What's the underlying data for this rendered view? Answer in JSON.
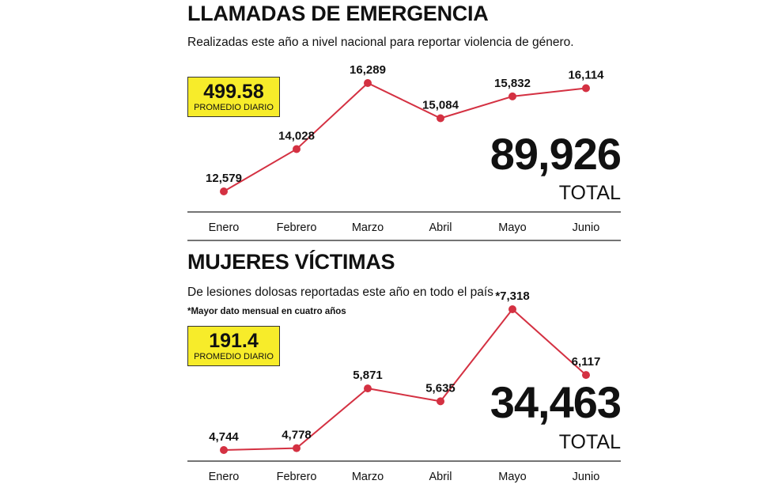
{
  "chart_data": [
    {
      "type": "line",
      "title": "LLAMADAS DE EMERGENCIA",
      "subtitle": "Realizadas este año a nivel nacional para reportar violencia de género.",
      "categories": [
        "Enero",
        "Febrero",
        "Marzo",
        "Abril",
        "Mayo",
        "Junio"
      ],
      "values": [
        12579,
        14028,
        16289,
        15084,
        15832,
        16114
      ],
      "value_labels": [
        "12,579",
        "14,028",
        "16,289",
        "15,084",
        "15,832",
        "16,114"
      ],
      "average_value": "499.58",
      "average_label": "PROMEDIO DIARIO",
      "total_value": "89,926",
      "total_label": "TOTAL",
      "line_color": "#d43142",
      "highlight_color": "#f7ec2a"
    },
    {
      "type": "line",
      "title": "MUJERES VÍCTIMAS",
      "subtitle": "De lesiones dolosas reportadas este año en todo el país",
      "footnote": "*Mayor dato mensual en cuatro años",
      "categories": [
        "Enero",
        "Febrero",
        "Marzo",
        "Abril",
        "Mayo",
        "Junio"
      ],
      "values": [
        4744,
        4778,
        5871,
        5635,
        7318,
        6117
      ],
      "value_labels": [
        "4,744",
        "4,778",
        "5,871",
        "5,635",
        "*7,318",
        "6,117"
      ],
      "average_value": "191.4",
      "average_label": "PROMEDIO DIARIO",
      "total_value": "34,463",
      "total_label": "TOTAL",
      "line_color": "#d43142",
      "highlight_color": "#f7ec2a"
    }
  ]
}
